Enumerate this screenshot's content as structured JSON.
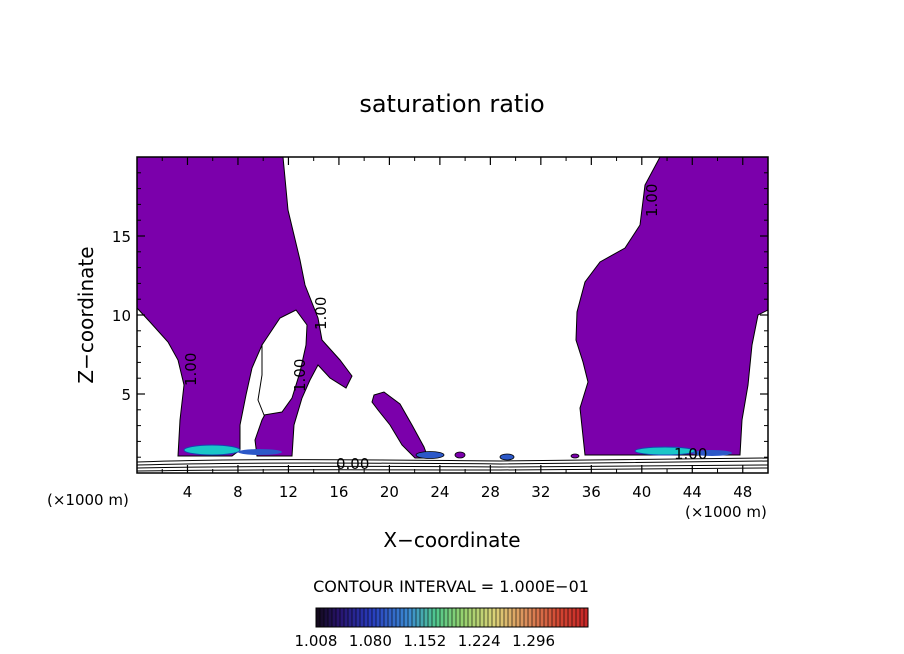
{
  "chart_data": {
    "type": "contour",
    "title": "saturation ratio",
    "xlabel": "X−coordinate",
    "ylabel": "Z−coordinate",
    "x_unit_left": "(×1000 m)",
    "x_unit_right": "(×1000 m)",
    "xlim": [
      0,
      50
    ],
    "ylim": [
      0,
      20
    ],
    "x_ticks": [
      "4",
      "8",
      "12",
      "16",
      "20",
      "24",
      "28",
      "32",
      "36",
      "40",
      "44",
      "48"
    ],
    "y_ticks": [
      "5",
      "10",
      "15"
    ],
    "contour_labels": [
      "1.00",
      "1.00",
      "1.00",
      "1.00",
      "0.00",
      "1.00"
    ],
    "contour_interval": "CONTOUR INTERVAL = 1.000E−01",
    "colorbar": {
      "labels": [
        "1.008",
        "1.080",
        "1.152",
        "1.224",
        "1.296"
      ],
      "min": 1.008,
      "max": 1.296
    },
    "colors": {
      "fill": "#7b00ab"
    }
  }
}
